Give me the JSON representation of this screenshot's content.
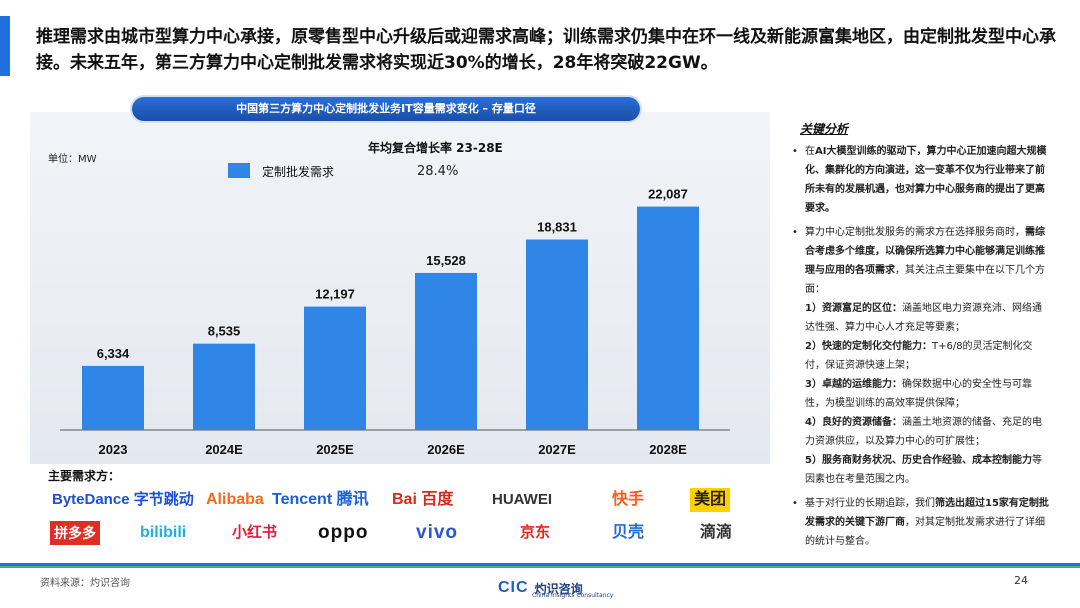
{
  "headline": "推理需求由城市型算力中心承接，原零售型中心升级后或迎需求高峰；训练需求仍集中在环一线及新能源富集地区，由定制批发型中心承接。未来五年，第三方算力中心定制批发需求将实现近30%的增长，28年将突破22GW。",
  "chart_title": "中国第三方算力中心定制批发业务IT容量需求变化 – 存量口径",
  "unit_label": "单位：MW",
  "legend_label": "定制批发需求",
  "cagr_title": "年均复合增长率 23-28E",
  "cagr_value": "28.4%",
  "chart_data": {
    "type": "bar",
    "categories": [
      "2023",
      "2024E",
      "2025E",
      "2026E",
      "2027E",
      "2028E"
    ],
    "values": [
      6334,
      8535,
      12197,
      15528,
      18831,
      22087
    ],
    "value_labels": [
      "6,334",
      "8,535",
      "12,197",
      "15,528",
      "18,831",
      "22,087"
    ],
    "series": [
      {
        "name": "定制批发需求",
        "values": [
          6334,
          8535,
          12197,
          15528,
          18831,
          22087
        ]
      }
    ],
    "ylim": [
      0,
      24000
    ],
    "color": "#2f86e6",
    "grid": false,
    "legend_position": "top-left"
  },
  "customers_label": "主要需求方：",
  "customers": [
    {
      "name": "ByteDance 字节跳动",
      "color": "#1d4fd8"
    },
    {
      "name": "Alibaba",
      "color": "#f26a1b"
    },
    {
      "name": "Tencent 腾讯",
      "color": "#1a5ed9"
    },
    {
      "name": "Bai 百度",
      "color": "#d52a1d"
    },
    {
      "name": "HUAWEI",
      "color": "#333333"
    },
    {
      "name": "快手",
      "color": "#ff5a1f"
    },
    {
      "name": "美团",
      "color": "#222222"
    },
    {
      "name": "拼多多",
      "color": "#e02e24"
    },
    {
      "name": "bilibili",
      "color": "#23ade5"
    },
    {
      "name": "小红书",
      "color": "#e31937"
    },
    {
      "name": "oppo",
      "color": "#111111"
    },
    {
      "name": "vivo",
      "color": "#2a55d8"
    },
    {
      "name": "京东",
      "color": "#e1251b"
    },
    {
      "name": "贝壳",
      "color": "#1e6bd6"
    },
    {
      "name": "滴滴",
      "color": "#333333"
    }
  ],
  "side": {
    "title": "关键分析",
    "p1_pre": "在",
    "p1_bold": "AI大模型训练的驱动下，算力中心正加速向超大规模化、集群化的方向演进，这一变革不仅为行业带来了前所未有的发展机遇，也对算力中心服务商的提出了更高要求。",
    "p2_pre": "算力中心定制批发服务的需求方在选择服务商时，",
    "p2_bold": "需综合考虑多个维度，以确保所选算力中心能够满足训练推理与应用的各项需求",
    "p2_post": "，其关注点主要集中在以下几个方面：",
    "items": [
      {
        "bold": "1）资源富足的区位：",
        "text": "涵盖地区电力资源充沛、网络通达性强、算力中心人才充足等要素；"
      },
      {
        "bold": "2）快速的定制化交付能力：",
        "text": "T+6/8的灵活定制化交付，保证资源快速上架；"
      },
      {
        "bold": "3）卓越的运维能力：",
        "text": "确保数据中心的安全性与可靠性，为模型训练的高效率提供保障；"
      },
      {
        "bold": "4）良好的资源储备：",
        "text": "涵盖土地资源的储备、充足的电力资源供应，以及算力中心的可扩展性；"
      },
      {
        "bold": "5）服务商财务状况、历史合作经验、成本控制能力",
        "text": "等因素也在考量范围之内。"
      }
    ],
    "p3_pre": "基于对行业的长期追踪，我们",
    "p3_bold": "筛选出超过15家有定制批发需求的关键下游厂商",
    "p3_post": "，对其定制批发需求进行了详细的统计与整合。"
  },
  "footer": {
    "source": "资料来源：灼识咨询",
    "logo_mark": "CIC",
    "logo_name": "灼识咨询",
    "logo_sub": "China Insights Consultancy",
    "page_number": "24"
  }
}
